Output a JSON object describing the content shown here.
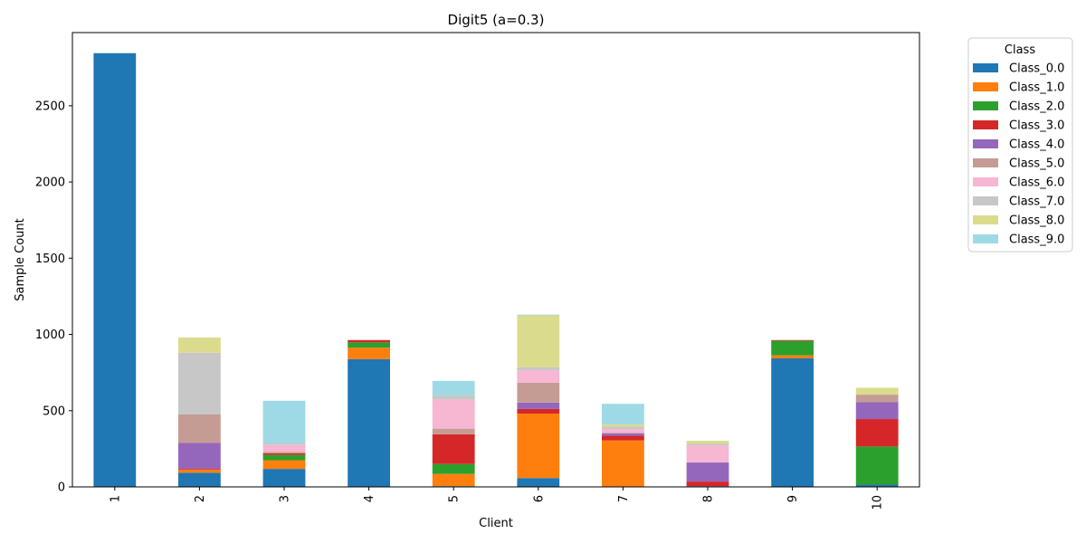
{
  "chart_data": {
    "type": "bar",
    "stacked": true,
    "title": "Digit5 (a=0.3)",
    "xlabel": "Client",
    "ylabel": "Sample Count",
    "ylim": [
      0,
      2980
    ],
    "yticks": [
      0,
      500,
      1000,
      1500,
      2000,
      2500
    ],
    "grid": false,
    "categories": [
      "1",
      "2",
      "3",
      "4",
      "5",
      "6",
      "7",
      "8",
      "9",
      "10"
    ],
    "legend": {
      "title": "Class",
      "placement": "outside-right"
    },
    "series": [
      {
        "name": "Class_0.0",
        "color": "#1f77b4",
        "values": [
          2845,
          93,
          118,
          838,
          5,
          58,
          0,
          5,
          843,
          15
        ]
      },
      {
        "name": "Class_1.0",
        "color": "#ff7f0e",
        "values": [
          0,
          20,
          57,
          75,
          80,
          423,
          305,
          0,
          20,
          0
        ]
      },
      {
        "name": "Class_2.0",
        "color": "#2ca02c",
        "values": [
          0,
          0,
          35,
          35,
          65,
          0,
          0,
          0,
          95,
          250
        ]
      },
      {
        "name": "Class_3.0",
        "color": "#d62728",
        "values": [
          0,
          5,
          10,
          15,
          195,
          30,
          30,
          30,
          5,
          180
        ]
      },
      {
        "name": "Class_4.0",
        "color": "#9467bd",
        "values": [
          0,
          170,
          0,
          0,
          0,
          42,
          15,
          125,
          0,
          110
        ]
      },
      {
        "name": "Class_5.0",
        "color": "#c49c94",
        "values": [
          0,
          187,
          10,
          0,
          37,
          130,
          5,
          0,
          0,
          50
        ]
      },
      {
        "name": "Class_6.0",
        "color": "#f7b6d2",
        "values": [
          0,
          0,
          45,
          0,
          190,
          82,
          25,
          112,
          0,
          0
        ]
      },
      {
        "name": "Class_7.0",
        "color": "#c7c7c7",
        "values": [
          0,
          405,
          10,
          0,
          30,
          20,
          15,
          10,
          0,
          0
        ]
      },
      {
        "name": "Class_8.0",
        "color": "#dbdb8d",
        "values": [
          0,
          100,
          0,
          0,
          0,
          340,
          15,
          20,
          0,
          45
        ]
      },
      {
        "name": "Class_9.0",
        "color": "#9edae5",
        "values": [
          0,
          0,
          280,
          0,
          93,
          5,
          135,
          0,
          0,
          0
        ]
      }
    ]
  }
}
